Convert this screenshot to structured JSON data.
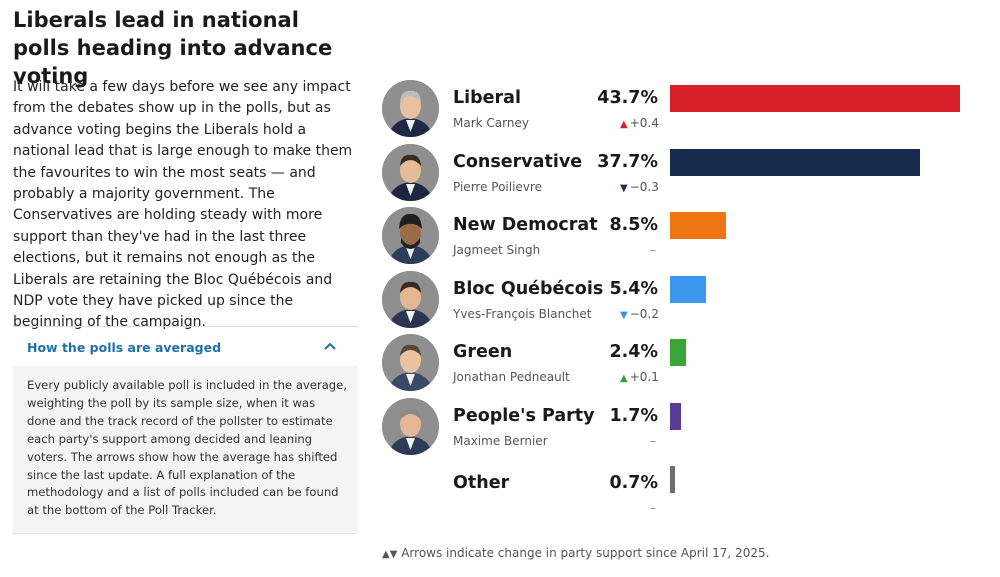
{
  "title": "Liberals lead in national polls heading into advance voting",
  "intro": "It will take a few days before we see any impact from the debates show up in the polls, but as advance voting begins the Liberals hold a national lead that is large enough to make them the favourites to win the most seats — and probably a majority government. The Conservatives are holding steady with more support than they've had in the last three elections, but it remains not enough as the Liberals are retaining the Bloc Québécois and NDP vote they have picked up since the beginning of the campaign.",
  "accordion": {
    "title": "How the polls are averaged",
    "body": "Every publicly available poll is included in the average, weighting the poll by its sample size, when it was done and the track record of the pollster to estimate each party's support among decided and leaning voters. The arrows show how the average has shifted since the last update. A full explanation of the methodology and a list of polls included can be found at the bottom of the Poll Tracker."
  },
  "footnote": {
    "arrows": "▲▼",
    "text": "Arrows indicate change in party support since April 17, 2025."
  },
  "colors": {
    "up": "#d0222b",
    "down": "#1f3250",
    "down_light": "#3a8ee6",
    "up_green": "#3a9c3a"
  },
  "chart_data": {
    "type": "bar",
    "title": "Liberals lead in national polls heading into advance voting",
    "unit": "%",
    "xlim": [
      0,
      43.7
    ],
    "categories": [
      "Liberal",
      "Conservative",
      "New Democrat",
      "Bloc Québécois",
      "Green",
      "People's Party",
      "Other"
    ],
    "values": [
      43.7,
      37.7,
      8.5,
      5.4,
      2.4,
      1.7,
      0.7
    ],
    "rows": [
      {
        "party": "Liberal",
        "leader": "Mark Carney",
        "value": 43.7,
        "value_label": "43.7%",
        "change_dir": "up",
        "change_label": "+0.4",
        "color": "#d8202a",
        "has_photo": true
      },
      {
        "party": "Conservative",
        "leader": "Pierre Poilievre",
        "value": 37.7,
        "value_label": "37.7%",
        "change_dir": "down",
        "change_label": "−0.3",
        "color": "#162b4e",
        "has_photo": true
      },
      {
        "party": "New Democrat",
        "leader": "Jagmeet Singh",
        "value": 8.5,
        "value_label": "8.5%",
        "change_dir": "none",
        "change_label": "–",
        "color": "#ef7412",
        "has_photo": true
      },
      {
        "party": "Bloc Québécois",
        "leader": "Yves-François Blanchet",
        "value": 5.4,
        "value_label": "5.4%",
        "change_dir": "down_light",
        "change_label": "−0.2",
        "color": "#3d97ef",
        "has_photo": true
      },
      {
        "party": "Green",
        "leader": "Jonathan Pedneault",
        "value": 2.4,
        "value_label": "2.4%",
        "change_dir": "up_green",
        "change_label": "+0.1",
        "color": "#3aa63a",
        "has_photo": true
      },
      {
        "party": "People's Party",
        "leader": "Maxime Bernier",
        "value": 1.7,
        "value_label": "1.7%",
        "change_dir": "none",
        "change_label": "–",
        "color": "#5a3c96",
        "has_photo": true
      },
      {
        "party": "Other",
        "leader": "",
        "value": 0.7,
        "value_label": "0.7%",
        "change_dir": "none",
        "change_label": "–",
        "color": "#6e6e6e",
        "has_photo": false
      }
    ]
  }
}
